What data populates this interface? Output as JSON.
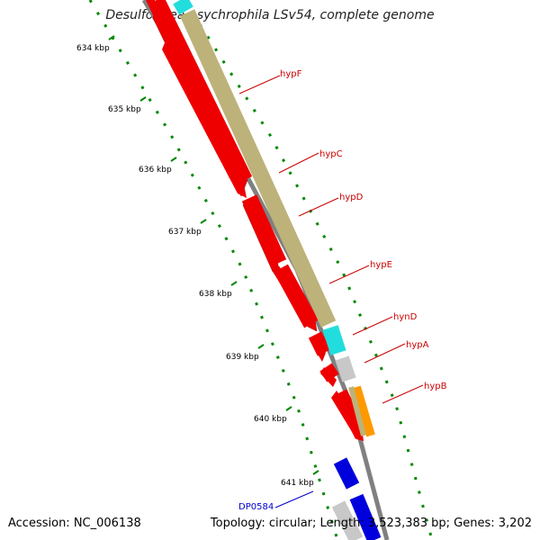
{
  "title": "Desulfotalea psychrophila LSv54, complete genome",
  "footer": {
    "accession": "Accession: NC_006138",
    "summary": "Topology: circular; Length: 3,523,383 bp; Genes: 3,202"
  },
  "ticks": [
    "634 kbp",
    "635 kbp",
    "636 kbp",
    "637 kbp",
    "638 kbp",
    "639 kbp",
    "640 kbp",
    "641 kbp"
  ],
  "gene_labels": [
    {
      "name": "hypF",
      "color": "#cc0000"
    },
    {
      "name": "hypC",
      "color": "#cc0000"
    },
    {
      "name": "hypD",
      "color": "#cc0000"
    },
    {
      "name": "hypE",
      "color": "#cc0000"
    },
    {
      "name": "hynD",
      "color": "#cc0000"
    },
    {
      "name": "hypA",
      "color": "#cc0000"
    },
    {
      "name": "hypB",
      "color": "#cc0000"
    },
    {
      "name": "DP0584",
      "color": "#0000cc"
    }
  ],
  "colors": {
    "cds": "#ee0000",
    "cog_olive": "#bdb27a",
    "cog_cyan": "#22dddd",
    "cog_gray": "#c8c8c8",
    "cog_orange": "#ff9900",
    "blue_cds": "#0000dd",
    "backbone": "#808080",
    "tick_dots": "#008800"
  }
}
